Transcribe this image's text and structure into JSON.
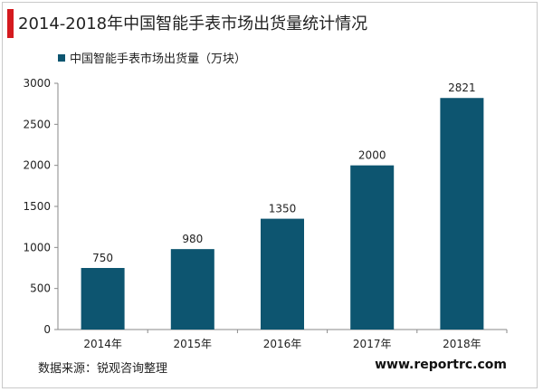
{
  "title": "2014-2018年中国智能手表市场出货量统计情况",
  "source": "数据来源：锐观咨询整理",
  "website": "www.reportrc.com",
  "colors": {
    "accent": "#d41a1f",
    "bar": "#0d5570"
  },
  "chart_data": {
    "type": "bar",
    "categories": [
      "2014年",
      "2015年",
      "2016年",
      "2017年",
      "2018年"
    ],
    "series": [
      {
        "name": "中国智能手表市场出货量（万块）",
        "values": [
          750,
          980,
          1350,
          2000,
          2821
        ]
      }
    ],
    "data_labels": [
      "750",
      "980",
      "1350",
      "2000",
      "2821"
    ],
    "yticks": [
      0,
      500,
      1000,
      1500,
      2000,
      2500,
      3000
    ],
    "ylim": [
      0,
      3000
    ],
    "grid": false,
    "legend_position": "top-left"
  }
}
